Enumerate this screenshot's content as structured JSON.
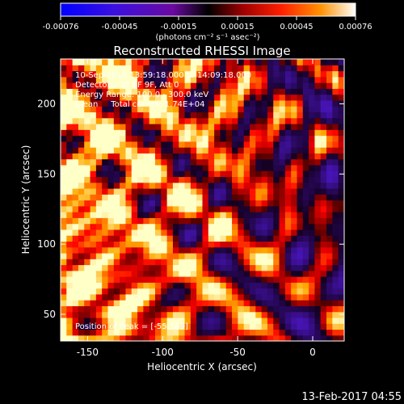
{
  "chart_data": {
    "type": "heatmap",
    "title": "Reconstructed RHESSI Image",
    "xlabel": "Heliocentric X (arcsec)",
    "ylabel": "Heliocentric Y (arcsec)",
    "xlim": [
      -168,
      21
    ],
    "ylim": [
      31,
      232
    ],
    "x_ticks": [
      -150,
      -100,
      -50,
      0
    ],
    "y_ticks": [
      50,
      100,
      150,
      200
    ],
    "colorbar": {
      "range": [
        -0.00076,
        0.00076
      ],
      "ticks": [
        "-0.00076",
        "-0.00045",
        "-0.00015",
        "0.00015",
        "0.00045",
        "0.00076"
      ],
      "unit_label": "(photons cm⁻² s⁻¹ asec⁻²)"
    },
    "annotations": [
      "10-Sep-2014 13:59:18.000 to 14:09:18.000",
      "Detectors: 3F 6F 9F, Att 0",
      "Energy Range: 100.0 - 300.0 keV",
      "Clean     Total counts: 1.74E+04"
    ],
    "peak_annotation": "Position of Peak = [-55,189]",
    "peak_position": [
      -55,
      189
    ],
    "colors": {
      "negative": "#3a1fbf",
      "zero": "#000000",
      "positive_mid": "#e02000",
      "positive_high": "#ffd020",
      "max": "#ffffff"
    }
  },
  "footer": {
    "timestamp": "13-Feb-2017 04:55"
  }
}
